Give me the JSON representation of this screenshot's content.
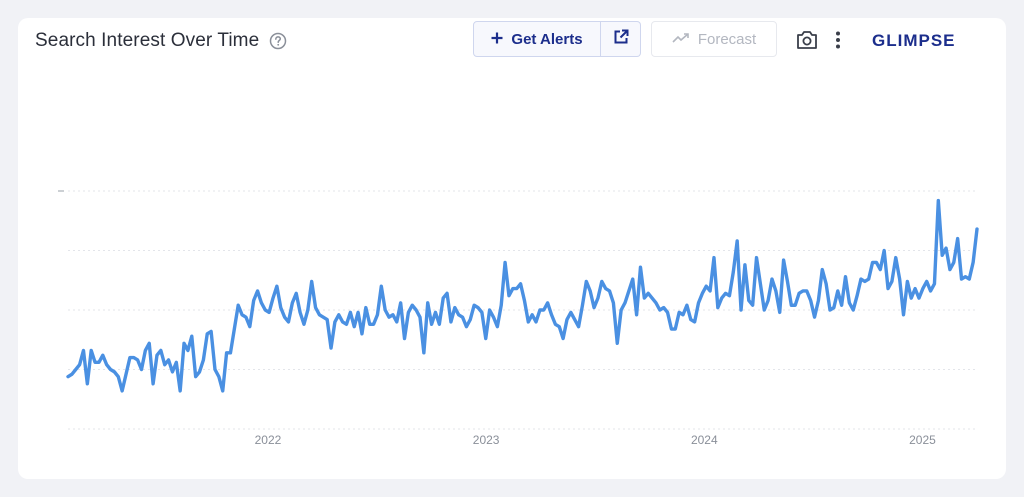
{
  "header": {
    "title": "Search Interest Over Time",
    "help_icon": "question-circle-icon",
    "alerts_label": "Get Alerts",
    "alerts_icon": "plus-icon",
    "open_icon": "external-link-icon",
    "forecast_label": "Forecast",
    "forecast_icon": "trend-up-icon",
    "camera_icon": "camera-icon",
    "menu_icon": "kebab-menu-icon",
    "brand": "GLIMPSE"
  },
  "colors": {
    "line": "#4a90e2",
    "brand": "#1c2e8c",
    "grid": "#e3e5ea"
  },
  "chart_data": {
    "type": "line",
    "title": "Search Interest Over Time",
    "xlabel": "",
    "ylabel": "",
    "x_ticks": [
      "2022",
      "2023",
      "2024",
      "2025"
    ],
    "x_start": "2021-02",
    "x_end": "2025-04",
    "ylim": [
      0,
      100
    ],
    "grid": true,
    "series": [
      {
        "values": [
          22,
          23,
          25,
          27,
          33,
          19,
          33,
          28,
          28,
          31,
          27,
          25,
          24,
          22,
          16,
          23,
          30,
          30,
          29,
          25,
          33,
          36,
          19,
          31,
          33,
          27,
          29,
          24,
          28,
          16,
          36,
          33,
          39,
          22,
          24,
          29,
          40,
          41,
          25,
          22,
          16,
          32,
          32,
          42,
          52,
          48,
          47,
          43,
          54,
          58,
          53,
          50,
          49,
          55,
          60,
          51,
          47,
          45,
          53,
          57,
          49,
          44,
          50,
          62,
          51,
          48,
          47,
          46,
          34,
          45,
          48,
          45,
          44,
          49,
          43,
          49,
          40,
          51,
          44,
          44,
          48,
          60,
          50,
          47,
          48,
          45,
          53,
          38,
          49,
          52,
          50,
          47,
          32,
          53,
          44,
          49,
          44,
          55,
          57,
          45,
          51,
          48,
          47,
          43,
          46,
          52,
          51,
          49,
          38,
          50,
          47,
          43,
          52,
          70,
          56,
          59,
          59,
          61,
          54,
          45,
          48,
          45,
          50,
          50,
          53,
          48,
          44,
          43,
          38,
          46,
          49,
          46,
          43,
          52,
          62,
          58,
          51,
          55,
          62,
          59,
          58,
          53,
          36,
          50,
          53,
          58,
          63,
          48,
          68,
          55,
          57,
          55,
          53,
          50,
          51,
          49,
          42,
          42,
          49,
          48,
          52,
          46,
          45,
          53,
          57,
          60,
          58,
          72,
          51,
          55,
          57,
          56,
          66,
          79,
          50,
          69,
          54,
          52,
          72,
          61,
          50,
          54,
          63,
          58,
          49,
          71,
          62,
          52,
          52,
          57,
          58,
          58,
          54,
          47,
          54,
          67,
          61,
          50,
          51,
          58,
          52,
          64,
          53,
          50,
          56,
          63,
          62,
          63,
          70,
          70,
          67,
          75,
          59,
          62,
          72,
          63,
          48,
          62,
          55,
          59,
          55,
          59,
          62,
          58,
          61,
          96,
          73,
          76,
          67,
          70,
          80,
          63,
          64,
          63,
          70,
          84
        ]
      }
    ]
  }
}
